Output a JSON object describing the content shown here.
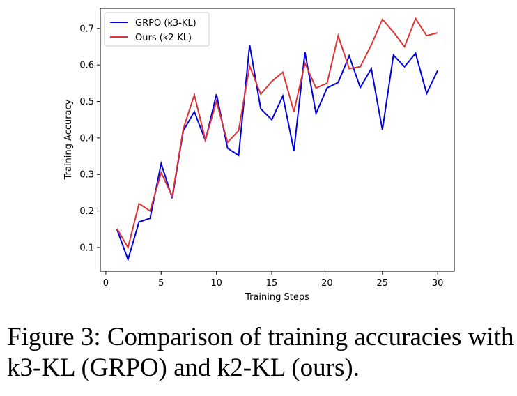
{
  "chart_data": {
    "type": "line",
    "xlabel": "Training Steps",
    "ylabel": "Training Accuracy",
    "xlim": [
      -0.5,
      31.5
    ],
    "ylim": [
      0.035,
      0.755
    ],
    "xticks": [
      0,
      5,
      10,
      15,
      20,
      25,
      30
    ],
    "yticks": [
      0.1,
      0.2,
      0.3,
      0.4,
      0.5,
      0.6,
      0.7
    ],
    "xtick_labels": [
      "0",
      "5",
      "10",
      "15",
      "20",
      "25",
      "30"
    ],
    "ytick_labels": [
      "0.1",
      "0.2",
      "0.3",
      "0.4",
      "0.5",
      "0.6",
      "0.7"
    ],
    "grid": false,
    "legend_position": "top-left",
    "x": [
      1,
      2,
      3,
      4,
      5,
      6,
      7,
      8,
      9,
      10,
      11,
      12,
      13,
      14,
      15,
      16,
      17,
      18,
      19,
      20,
      21,
      22,
      23,
      24,
      25,
      26,
      27,
      28,
      29,
      30
    ],
    "series": [
      {
        "name": "GRPO (k3-KL)",
        "color": "#0000dd",
        "values": [
          0.15,
          0.067,
          0.17,
          0.18,
          0.33,
          0.235,
          0.42,
          0.472,
          0.393,
          0.52,
          0.372,
          0.352,
          0.655,
          0.48,
          0.45,
          0.515,
          0.365,
          0.635,
          0.467,
          0.537,
          0.552,
          0.625,
          0.538,
          0.59,
          0.422,
          0.627,
          0.595,
          0.632,
          0.522,
          0.585
        ]
      },
      {
        "name": "Ours (k2-KL)",
        "color": "#dd3333",
        "values": [
          0.152,
          0.1,
          0.22,
          0.2,
          0.305,
          0.24,
          0.425,
          0.518,
          0.395,
          0.5,
          0.388,
          0.42,
          0.597,
          0.52,
          0.555,
          0.58,
          0.472,
          0.605,
          0.537,
          0.55,
          0.68,
          0.59,
          0.595,
          0.655,
          0.725,
          0.69,
          0.65,
          0.727,
          0.68,
          0.688
        ]
      }
    ]
  },
  "caption": {
    "line1": "Figure 3: Comparison of training accuracies with",
    "line2": "k3-KL (GRPO) and k2-KL (ours)."
  }
}
